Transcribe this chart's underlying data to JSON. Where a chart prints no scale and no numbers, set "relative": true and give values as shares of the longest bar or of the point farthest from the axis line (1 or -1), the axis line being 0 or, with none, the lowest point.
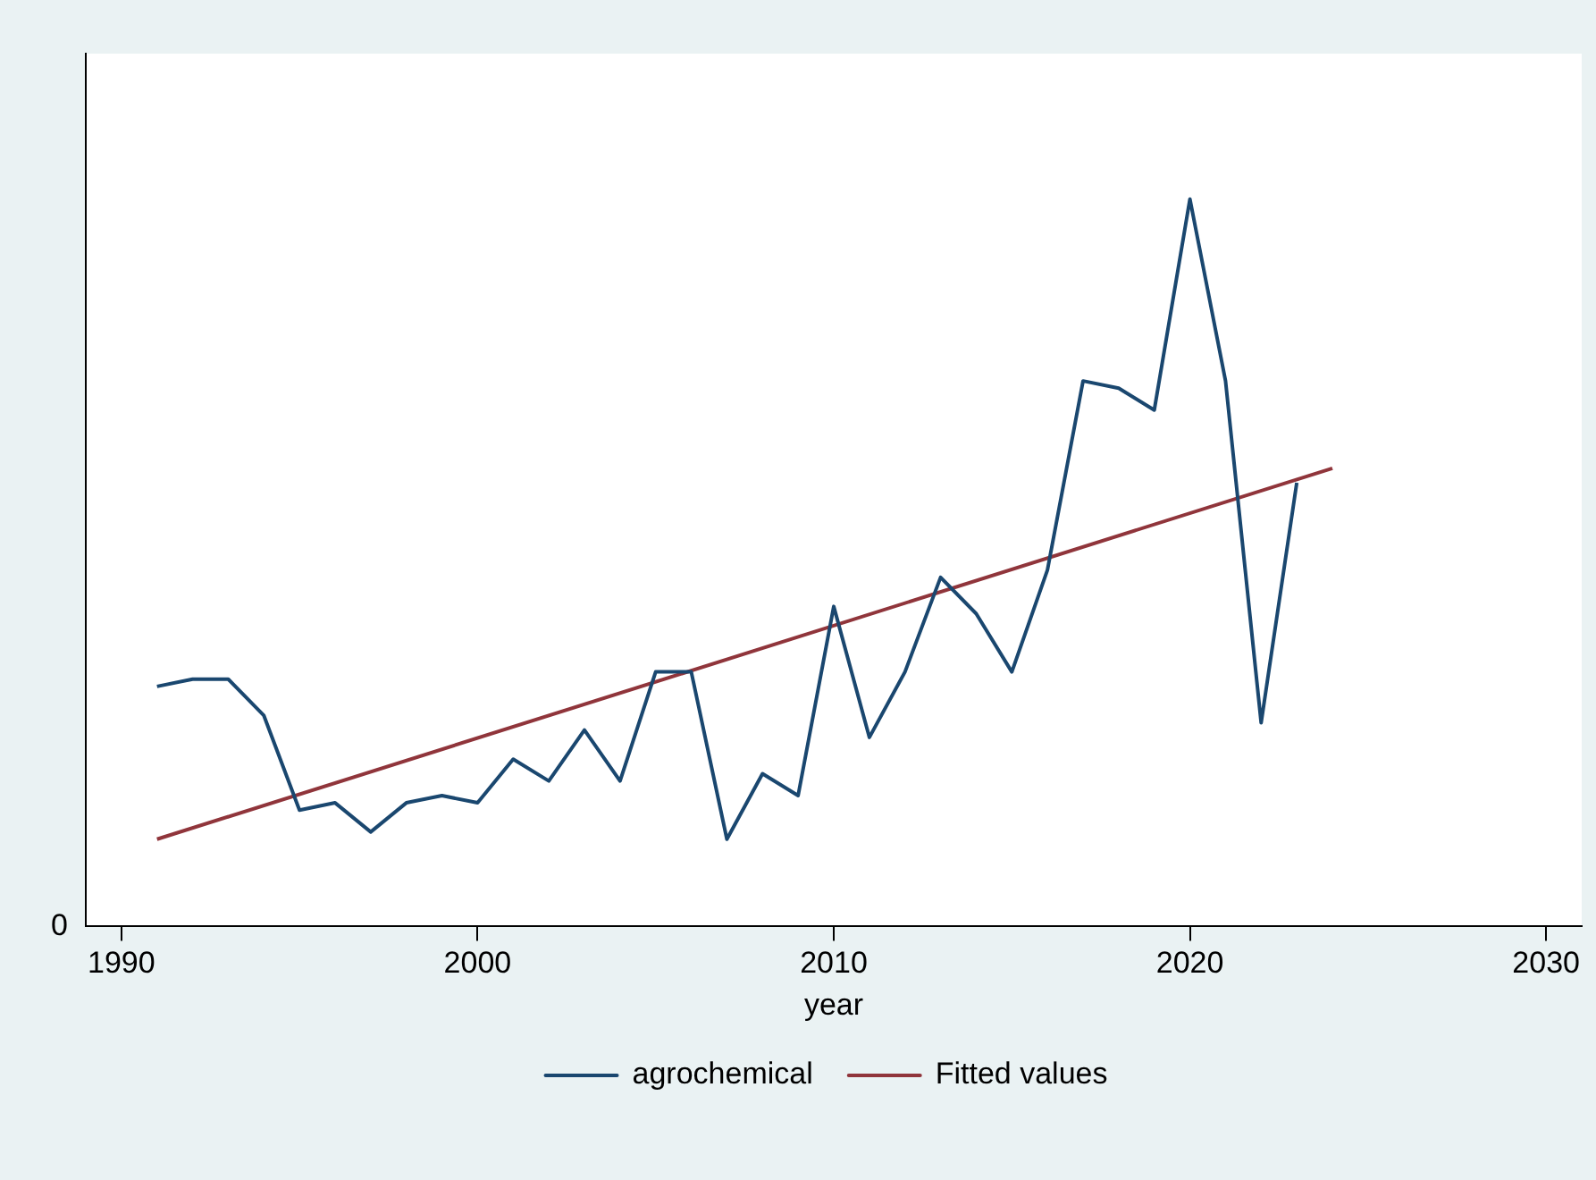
{
  "chart_data": {
    "type": "line",
    "xlabel": "year",
    "relative": true,
    "xlim": [
      1989,
      2031
    ],
    "xticks": [
      1990,
      2000,
      2010,
      2020,
      2030
    ],
    "annotations": [
      "0"
    ],
    "legend": "bottom",
    "marker": "none",
    "line_style": "solid",
    "series": [
      {
        "name": "agrochemical",
        "color": "#1a476f",
        "x": [
          1991,
          1992,
          1993,
          1994,
          1995,
          1996,
          1997,
          1998,
          1999,
          2000,
          2001,
          2002,
          2003,
          2004,
          2005,
          2006,
          2007,
          2008,
          2009,
          2010,
          2011,
          2012,
          2013,
          2014,
          2015,
          2016,
          2017,
          2018,
          2019,
          2020,
          2021,
          2022,
          2023
        ],
        "values": [
          0.33,
          0.34,
          0.34,
          0.29,
          0.16,
          0.17,
          0.13,
          0.17,
          0.18,
          0.17,
          0.23,
          0.2,
          0.27,
          0.2,
          0.35,
          0.35,
          0.12,
          0.21,
          0.18,
          0.44,
          0.26,
          0.35,
          0.48,
          0.43,
          0.35,
          0.49,
          0.75,
          0.74,
          0.71,
          1,
          0.75,
          0.28,
          0.61
        ]
      },
      {
        "name": "Fitted values",
        "color": "#90353b",
        "x": [
          1991,
          2024
        ],
        "values": [
          0.12,
          0.63
        ]
      }
    ]
  }
}
